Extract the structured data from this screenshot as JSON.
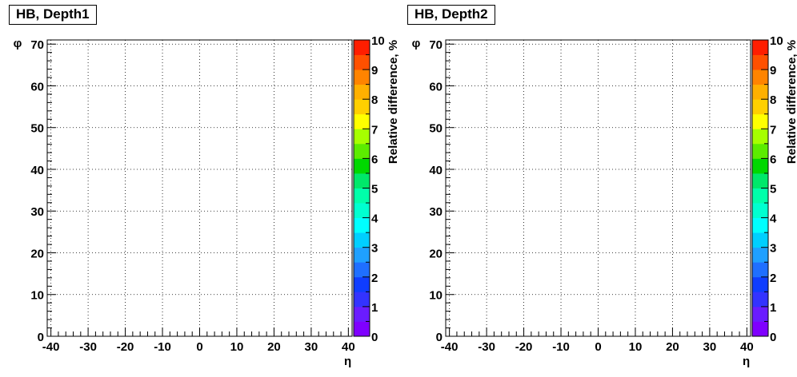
{
  "palette": [
    "#7f00ff",
    "#6a1cff",
    "#3333ff",
    "#0f3dff",
    "#1f6fff",
    "#1fa0ff",
    "#00cfff",
    "#00ffff",
    "#00ffd0",
    "#00ffaa",
    "#00e86a",
    "#00d800",
    "#5cec00",
    "#a6ff00",
    "#ffff00",
    "#ffd000",
    "#ffb000",
    "#ff8400",
    "#ff5000",
    "#ff1e00"
  ],
  "chart_data": [
    {
      "type": "heatmap",
      "title": "HB, Depth1",
      "xlabel": "η",
      "ylabel": "φ",
      "zlabel": "Relative difference, %",
      "xlim": [
        -41,
        41
      ],
      "ylim": [
        0,
        71
      ],
      "zlim": [
        0,
        10
      ],
      "x_ticks": [
        -40,
        -30,
        -20,
        -10,
        0,
        10,
        20,
        30,
        40
      ],
      "y_ticks": [
        0,
        10,
        20,
        30,
        40,
        50,
        60,
        70
      ],
      "z_ticks": [
        0,
        1,
        2,
        3,
        4,
        5,
        6,
        7,
        8,
        9,
        10
      ],
      "grid": true,
      "values": []
    },
    {
      "type": "heatmap",
      "title": "HB, Depth2",
      "xlabel": "η",
      "ylabel": "φ",
      "zlabel": "Relative difference, %",
      "xlim": [
        -41,
        41
      ],
      "ylim": [
        0,
        71
      ],
      "zlim": [
        0,
        10
      ],
      "x_ticks": [
        -40,
        -30,
        -20,
        -10,
        0,
        10,
        20,
        30,
        40
      ],
      "y_ticks": [
        0,
        10,
        20,
        30,
        40,
        50,
        60,
        70
      ],
      "z_ticks": [
        0,
        1,
        2,
        3,
        4,
        5,
        6,
        7,
        8,
        9,
        10
      ],
      "grid": true,
      "values": []
    }
  ]
}
